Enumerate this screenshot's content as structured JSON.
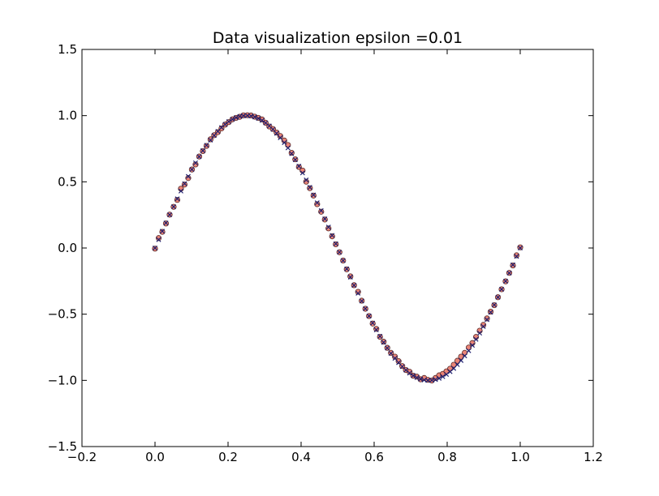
{
  "chart_data": {
    "type": "scatter",
    "title": "Data visualization epsilon =0.01",
    "xlabel": "",
    "ylabel": "",
    "xlim": [
      -0.2,
      1.2
    ],
    "ylim": [
      -1.5,
      1.5
    ],
    "xticks": [
      -0.2,
      0.0,
      0.2,
      0.4,
      0.6,
      0.8,
      1.0,
      1.2
    ],
    "yticks": [
      -1.5,
      -1.0,
      -0.5,
      0.0,
      0.5,
      1.0,
      1.5
    ],
    "xtick_labels": [
      "−0.2",
      "0.0",
      "0.2",
      "0.4",
      "0.6",
      "0.8",
      "1.0",
      "1.2"
    ],
    "ytick_labels": [
      "−1.5",
      "−1.0",
      "−0.5",
      "0.0",
      "0.5",
      "1.0",
      "1.5"
    ],
    "grid": false,
    "series": [
      {
        "marker": "circle",
        "color": "#e8705f",
        "edge_color": "#5a2a2a",
        "x": [
          0.0,
          0.01,
          0.02,
          0.03,
          0.04,
          0.051,
          0.061,
          0.071,
          0.081,
          0.091,
          0.101,
          0.111,
          0.121,
          0.131,
          0.141,
          0.152,
          0.162,
          0.172,
          0.182,
          0.192,
          0.202,
          0.212,
          0.222,
          0.232,
          0.242,
          0.253,
          0.263,
          0.273,
          0.283,
          0.293,
          0.303,
          0.313,
          0.323,
          0.333,
          0.343,
          0.354,
          0.364,
          0.374,
          0.384,
          0.394,
          0.404,
          0.414,
          0.424,
          0.434,
          0.444,
          0.455,
          0.465,
          0.475,
          0.485,
          0.495,
          0.505,
          0.515,
          0.525,
          0.535,
          0.545,
          0.556,
          0.566,
          0.576,
          0.586,
          0.596,
          0.606,
          0.616,
          0.626,
          0.636,
          0.646,
          0.657,
          0.667,
          0.677,
          0.687,
          0.697,
          0.707,
          0.717,
          0.727,
          0.737,
          0.747,
          0.758,
          0.768,
          0.778,
          0.788,
          0.798,
          0.808,
          0.818,
          0.828,
          0.838,
          0.848,
          0.859,
          0.869,
          0.879,
          0.889,
          0.899,
          0.909,
          0.919,
          0.929,
          0.939,
          0.949,
          0.96,
          0.97,
          0.98,
          0.99,
          1.0
        ],
        "y": [
          -0.005,
          0.075,
          0.122,
          0.185,
          0.252,
          0.311,
          0.363,
          0.448,
          0.479,
          0.528,
          0.593,
          0.631,
          0.691,
          0.732,
          0.771,
          0.821,
          0.852,
          0.875,
          0.903,
          0.932,
          0.951,
          0.972,
          0.983,
          0.991,
          1.002,
          1.003,
          1.001,
          0.992,
          0.983,
          0.971,
          0.946,
          0.918,
          0.899,
          0.872,
          0.846,
          0.812,
          0.778,
          0.719,
          0.67,
          0.612,
          0.585,
          0.501,
          0.452,
          0.396,
          0.331,
          0.274,
          0.215,
          0.148,
          0.088,
          0.028,
          -0.032,
          -0.095,
          -0.161,
          -0.214,
          -0.281,
          -0.331,
          -0.398,
          -0.459,
          -0.514,
          -0.571,
          -0.611,
          -0.671,
          -0.708,
          -0.754,
          -0.792,
          -0.821,
          -0.855,
          -0.892,
          -0.922,
          -0.935,
          -0.965,
          -0.972,
          -0.992,
          -0.982,
          -0.996,
          -1.001,
          -0.982,
          -0.962,
          -0.951,
          -0.932,
          -0.912,
          -0.882,
          -0.852,
          -0.821,
          -0.792,
          -0.752,
          -0.718,
          -0.672,
          -0.625,
          -0.581,
          -0.532,
          -0.481,
          -0.432,
          -0.372,
          -0.312,
          -0.252,
          -0.188,
          -0.132,
          -0.055,
          0.005
        ]
      },
      {
        "marker": "x",
        "color": "#1f1f6e",
        "x": [
          0.0,
          0.01,
          0.02,
          0.03,
          0.04,
          0.051,
          0.061,
          0.071,
          0.081,
          0.091,
          0.101,
          0.111,
          0.121,
          0.131,
          0.141,
          0.152,
          0.162,
          0.172,
          0.182,
          0.192,
          0.202,
          0.212,
          0.222,
          0.232,
          0.242,
          0.253,
          0.263,
          0.273,
          0.283,
          0.293,
          0.303,
          0.313,
          0.323,
          0.333,
          0.343,
          0.354,
          0.364,
          0.374,
          0.384,
          0.394,
          0.404,
          0.414,
          0.424,
          0.434,
          0.444,
          0.455,
          0.465,
          0.475,
          0.485,
          0.495,
          0.505,
          0.515,
          0.525,
          0.535,
          0.545,
          0.556,
          0.566,
          0.576,
          0.586,
          0.596,
          0.606,
          0.616,
          0.626,
          0.636,
          0.646,
          0.657,
          0.667,
          0.677,
          0.687,
          0.697,
          0.707,
          0.717,
          0.727,
          0.737,
          0.747,
          0.758,
          0.768,
          0.778,
          0.788,
          0.798,
          0.808,
          0.818,
          0.828,
          0.838,
          0.848,
          0.859,
          0.869,
          0.879,
          0.889,
          0.899,
          0.909,
          0.919,
          0.929,
          0.939,
          0.949,
          0.96,
          0.97,
          0.98,
          0.99,
          1.0
        ],
        "y": [
          0.0,
          0.063,
          0.127,
          0.189,
          0.251,
          0.312,
          0.372,
          0.43,
          0.486,
          0.541,
          0.593,
          0.643,
          0.69,
          0.735,
          0.776,
          0.815,
          0.85,
          0.881,
          0.91,
          0.934,
          0.955,
          0.972,
          0.985,
          0.994,
          0.999,
          1.0,
          0.997,
          0.99,
          0.979,
          0.964,
          0.945,
          0.922,
          0.896,
          0.866,
          0.833,
          0.796,
          0.756,
          0.713,
          0.667,
          0.618,
          0.567,
          0.514,
          0.458,
          0.401,
          0.342,
          0.282,
          0.22,
          0.158,
          0.095,
          0.032,
          -0.032,
          -0.095,
          -0.158,
          -0.22,
          -0.282,
          -0.342,
          -0.401,
          -0.458,
          -0.514,
          -0.567,
          -0.618,
          -0.667,
          -0.713,
          -0.756,
          -0.796,
          -0.833,
          -0.866,
          -0.896,
          -0.922,
          -0.945,
          -0.964,
          -0.979,
          -0.99,
          -0.997,
          -1.0,
          -0.999,
          -0.994,
          -0.985,
          -0.972,
          -0.955,
          -0.934,
          -0.91,
          -0.881,
          -0.85,
          -0.815,
          -0.776,
          -0.735,
          -0.69,
          -0.643,
          -0.593,
          -0.541,
          -0.486,
          -0.43,
          -0.372,
          -0.312,
          -0.251,
          -0.189,
          -0.127,
          -0.063,
          0.0
        ]
      }
    ]
  }
}
